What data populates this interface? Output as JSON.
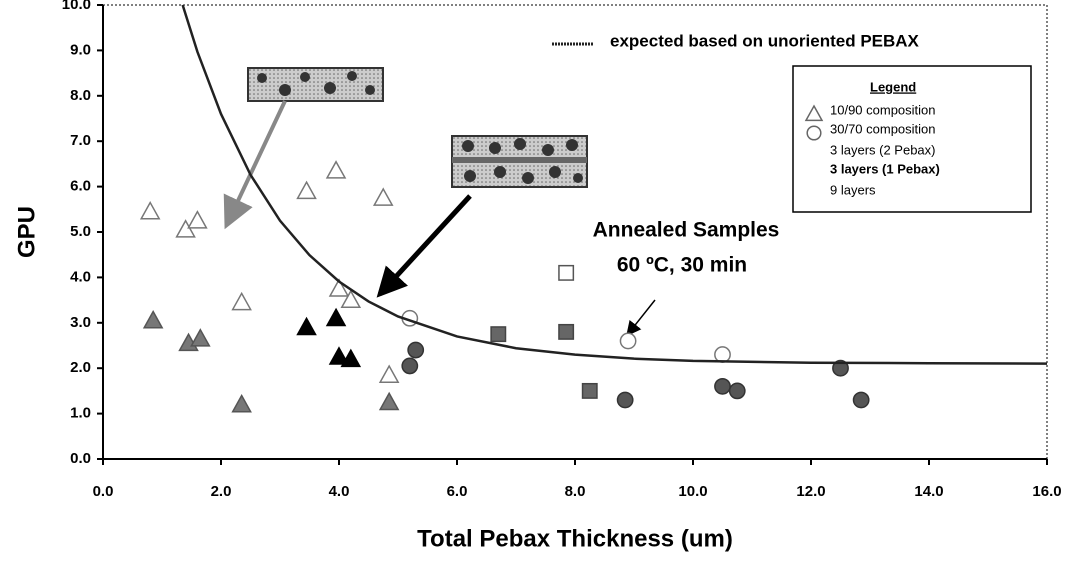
{
  "chart_data": {
    "type": "scatter",
    "xlabel": "Total Pebax Thickness (um)",
    "ylabel": "GPU",
    "xlim": [
      0,
      16
    ],
    "ylim": [
      0,
      10
    ],
    "xticks": [
      {
        "value": 0,
        "label": "0.0"
      },
      {
        "value": 2,
        "label": "2.0"
      },
      {
        "value": 4,
        "label": "4.0"
      },
      {
        "value": 6,
        "label": "6.0"
      },
      {
        "value": 8,
        "label": "8.0"
      },
      {
        "value": 10,
        "label": "10.0"
      },
      {
        "value": 12,
        "label": "12.0"
      },
      {
        "value": 14,
        "label": "14.0"
      },
      {
        "value": 16,
        "label": "16.0"
      }
    ],
    "yticks": [
      {
        "value": 0,
        "label": "0.0"
      },
      {
        "value": 1,
        "label": "1.0"
      },
      {
        "value": 2,
        "label": "2.0"
      },
      {
        "value": 3,
        "label": "3.0"
      },
      {
        "value": 4,
        "label": "4.0"
      },
      {
        "value": 5,
        "label": "5.0"
      },
      {
        "value": 6,
        "label": "6.0"
      },
      {
        "value": 7,
        "label": "7.0"
      },
      {
        "value": 8,
        "label": "8.0"
      },
      {
        "value": 9,
        "label": "9.0"
      },
      {
        "value": 10,
        "label": "10.0"
      }
    ],
    "series": [
      {
        "marker": "triangle",
        "color": "#ffffff",
        "stroke": "#777777",
        "x": [
          0.8,
          1.4,
          1.6,
          2.35,
          3.45,
          3.95,
          4.0,
          4.2,
          4.75,
          4.85
        ],
        "y": [
          5.45,
          5.05,
          5.25,
          3.45,
          5.9,
          6.35,
          3.75,
          3.5,
          5.75,
          1.85
        ]
      },
      {
        "marker": "triangle",
        "color": "#777777",
        "stroke": "#555555",
        "x": [
          0.85,
          1.45,
          1.65,
          2.35,
          4.85
        ],
        "y": [
          3.05,
          2.55,
          2.65,
          1.2,
          1.25
        ]
      },
      {
        "marker": "triangle",
        "color": "#000000",
        "stroke": "#000000",
        "x": [
          3.45,
          3.95,
          4.0,
          4.2
        ],
        "y": [
          2.9,
          3.1,
          2.25,
          2.2
        ]
      },
      {
        "marker": "circle",
        "color": "#ffffff",
        "stroke": "#777777",
        "x": [
          5.2,
          8.9,
          10.5
        ],
        "y": [
          3.1,
          2.6,
          2.3
        ]
      },
      {
        "marker": "circle",
        "color": "#555555",
        "stroke": "#333333",
        "x": [
          5.2,
          5.3,
          8.85,
          10.5,
          10.75,
          12.5,
          12.85
        ],
        "y": [
          2.05,
          2.4,
          1.3,
          1.6,
          1.5,
          2.0,
          1.3
        ]
      },
      {
        "marker": "square",
        "color": "#ffffff",
        "stroke": "#555555",
        "x": [
          7.85
        ],
        "y": [
          4.1
        ]
      },
      {
        "marker": "square",
        "color": "#666666",
        "stroke": "#444444",
        "x": [
          6.7,
          7.85,
          8.25
        ],
        "y": [
          2.75,
          2.8,
          1.5
        ]
      },
      {
        "marker": "line",
        "name": "expected based on unoriented PEBAX",
        "color": "#222222",
        "x": [
          1.35,
          1.6,
          2,
          2.5,
          3,
          3.5,
          4,
          4.5,
          5,
          6,
          7,
          8,
          9,
          10,
          12,
          14,
          16
        ],
        "y": [
          10,
          8.97,
          7.6,
          6.26,
          5.25,
          4.49,
          3.91,
          3.47,
          3.14,
          2.7,
          2.44,
          2.3,
          2.21,
          2.16,
          2.12,
          2.11,
          2.1
        ]
      }
    ],
    "legend_title": "Legend",
    "legend": [
      {
        "label": "10/90 composition",
        "marker": "triangle",
        "color": "#666666"
      },
      {
        "label": "30/70 composition",
        "marker": "circle",
        "color": "#666666"
      },
      {
        "label": "3 layers (2 Pebax)",
        "color": "#aaaaaa"
      },
      {
        "label": "3 layers (1 Pebax)",
        "color": "#000000",
        "bold": true
      },
      {
        "label": "9 layers",
        "color": "#333333"
      }
    ],
    "annotations": [
      "Annealed Samples",
      "60 ºC, 30 min"
    ]
  }
}
